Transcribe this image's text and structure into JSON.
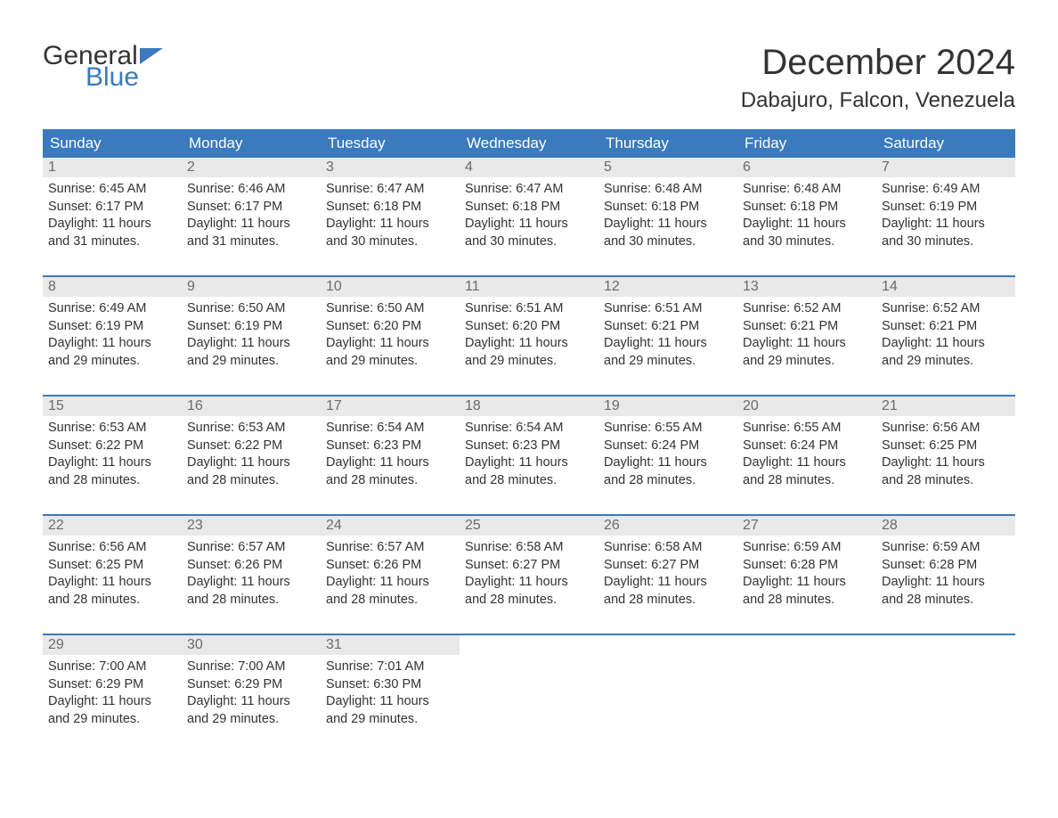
{
  "logo": {
    "text1": "General",
    "text2": "Blue",
    "flag_color": "#3a7abd"
  },
  "title": "December 2024",
  "location": "Dabajuro, Falcon, Venezuela",
  "colors": {
    "header_bg": "#3a7abd",
    "header_text": "#ffffff",
    "daynum_bg": "#e9e9e9",
    "daynum_text": "#6b6b6b",
    "body_text": "#333333",
    "week_border": "#3a7abd",
    "page_bg": "#ffffff"
  },
  "day_names": [
    "Sunday",
    "Monday",
    "Tuesday",
    "Wednesday",
    "Thursday",
    "Friday",
    "Saturday"
  ],
  "labels": {
    "sunrise": "Sunrise:",
    "sunset": "Sunset:",
    "daylight": "Daylight:"
  },
  "weeks": [
    [
      {
        "n": "1",
        "sunrise": "6:45 AM",
        "sunset": "6:17 PM",
        "dl1": "11 hours",
        "dl2": "and 31 minutes."
      },
      {
        "n": "2",
        "sunrise": "6:46 AM",
        "sunset": "6:17 PM",
        "dl1": "11 hours",
        "dl2": "and 31 minutes."
      },
      {
        "n": "3",
        "sunrise": "6:47 AM",
        "sunset": "6:18 PM",
        "dl1": "11 hours",
        "dl2": "and 30 minutes."
      },
      {
        "n": "4",
        "sunrise": "6:47 AM",
        "sunset": "6:18 PM",
        "dl1": "11 hours",
        "dl2": "and 30 minutes."
      },
      {
        "n": "5",
        "sunrise": "6:48 AM",
        "sunset": "6:18 PM",
        "dl1": "11 hours",
        "dl2": "and 30 minutes."
      },
      {
        "n": "6",
        "sunrise": "6:48 AM",
        "sunset": "6:18 PM",
        "dl1": "11 hours",
        "dl2": "and 30 minutes."
      },
      {
        "n": "7",
        "sunrise": "6:49 AM",
        "sunset": "6:19 PM",
        "dl1": "11 hours",
        "dl2": "and 30 minutes."
      }
    ],
    [
      {
        "n": "8",
        "sunrise": "6:49 AM",
        "sunset": "6:19 PM",
        "dl1": "11 hours",
        "dl2": "and 29 minutes."
      },
      {
        "n": "9",
        "sunrise": "6:50 AM",
        "sunset": "6:19 PM",
        "dl1": "11 hours",
        "dl2": "and 29 minutes."
      },
      {
        "n": "10",
        "sunrise": "6:50 AM",
        "sunset": "6:20 PM",
        "dl1": "11 hours",
        "dl2": "and 29 minutes."
      },
      {
        "n": "11",
        "sunrise": "6:51 AM",
        "sunset": "6:20 PM",
        "dl1": "11 hours",
        "dl2": "and 29 minutes."
      },
      {
        "n": "12",
        "sunrise": "6:51 AM",
        "sunset": "6:21 PM",
        "dl1": "11 hours",
        "dl2": "and 29 minutes."
      },
      {
        "n": "13",
        "sunrise": "6:52 AM",
        "sunset": "6:21 PM",
        "dl1": "11 hours",
        "dl2": "and 29 minutes."
      },
      {
        "n": "14",
        "sunrise": "6:52 AM",
        "sunset": "6:21 PM",
        "dl1": "11 hours",
        "dl2": "and 29 minutes."
      }
    ],
    [
      {
        "n": "15",
        "sunrise": "6:53 AM",
        "sunset": "6:22 PM",
        "dl1": "11 hours",
        "dl2": "and 28 minutes."
      },
      {
        "n": "16",
        "sunrise": "6:53 AM",
        "sunset": "6:22 PM",
        "dl1": "11 hours",
        "dl2": "and 28 minutes."
      },
      {
        "n": "17",
        "sunrise": "6:54 AM",
        "sunset": "6:23 PM",
        "dl1": "11 hours",
        "dl2": "and 28 minutes."
      },
      {
        "n": "18",
        "sunrise": "6:54 AM",
        "sunset": "6:23 PM",
        "dl1": "11 hours",
        "dl2": "and 28 minutes."
      },
      {
        "n": "19",
        "sunrise": "6:55 AM",
        "sunset": "6:24 PM",
        "dl1": "11 hours",
        "dl2": "and 28 minutes."
      },
      {
        "n": "20",
        "sunrise": "6:55 AM",
        "sunset": "6:24 PM",
        "dl1": "11 hours",
        "dl2": "and 28 minutes."
      },
      {
        "n": "21",
        "sunrise": "6:56 AM",
        "sunset": "6:25 PM",
        "dl1": "11 hours",
        "dl2": "and 28 minutes."
      }
    ],
    [
      {
        "n": "22",
        "sunrise": "6:56 AM",
        "sunset": "6:25 PM",
        "dl1": "11 hours",
        "dl2": "and 28 minutes."
      },
      {
        "n": "23",
        "sunrise": "6:57 AM",
        "sunset": "6:26 PM",
        "dl1": "11 hours",
        "dl2": "and 28 minutes."
      },
      {
        "n": "24",
        "sunrise": "6:57 AM",
        "sunset": "6:26 PM",
        "dl1": "11 hours",
        "dl2": "and 28 minutes."
      },
      {
        "n": "25",
        "sunrise": "6:58 AM",
        "sunset": "6:27 PM",
        "dl1": "11 hours",
        "dl2": "and 28 minutes."
      },
      {
        "n": "26",
        "sunrise": "6:58 AM",
        "sunset": "6:27 PM",
        "dl1": "11 hours",
        "dl2": "and 28 minutes."
      },
      {
        "n": "27",
        "sunrise": "6:59 AM",
        "sunset": "6:28 PM",
        "dl1": "11 hours",
        "dl2": "and 28 minutes."
      },
      {
        "n": "28",
        "sunrise": "6:59 AM",
        "sunset": "6:28 PM",
        "dl1": "11 hours",
        "dl2": "and 28 minutes."
      }
    ],
    [
      {
        "n": "29",
        "sunrise": "7:00 AM",
        "sunset": "6:29 PM",
        "dl1": "11 hours",
        "dl2": "and 29 minutes."
      },
      {
        "n": "30",
        "sunrise": "7:00 AM",
        "sunset": "6:29 PM",
        "dl1": "11 hours",
        "dl2": "and 29 minutes."
      },
      {
        "n": "31",
        "sunrise": "7:01 AM",
        "sunset": "6:30 PM",
        "dl1": "11 hours",
        "dl2": "and 29 minutes."
      },
      null,
      null,
      null,
      null
    ]
  ]
}
